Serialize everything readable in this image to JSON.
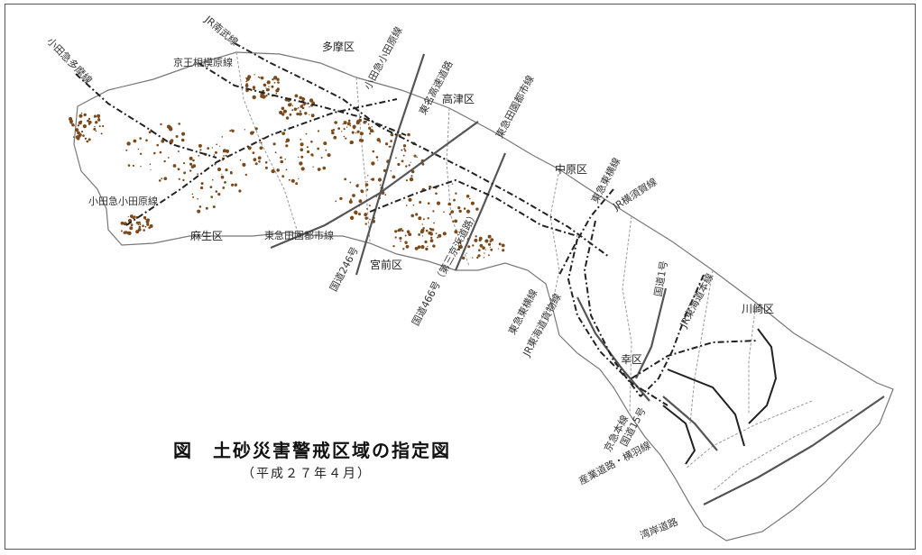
{
  "figure": {
    "title_mark": "図",
    "title": "土砂災害警戒区域の指定図",
    "subtitle": "（平成２７年４月）"
  },
  "wards": {
    "tama": "多摩区",
    "takatsu": "高津区",
    "nakahara": "中原区",
    "asao": "麻生区",
    "miyamae": "宮前区",
    "saiwai": "幸区",
    "kawasaki": "川崎区"
  },
  "routes": {
    "jr_nambu": "JR南武線",
    "keio_sagamihara": "京王相模原線",
    "odakyu_tama": "小田急多摩線",
    "odakyu_odawara_n": "小田急小田原線",
    "tomei": "東名高速道路",
    "tokyu_denentoshi_n": "東急田園都市線",
    "odakyu_odawara_w": "小田急小田原線",
    "tokyu_toyoko": "東急東横線",
    "jr_yokosuka": "JR横須賀線",
    "tokyu_denentoshi_s": "東急田園都市線",
    "route246": "国道246号",
    "route466": "国道466号（第三京浜道路）",
    "keikyu_toyoko": "東急東横線",
    "jr_tokaido_kamotsu": "JR東海道貨物線",
    "route1": "国道1号",
    "jr_tokaido": "JR東海道本線",
    "keikyu_main": "京急本線",
    "route15": "国道15号",
    "sangyo_road": "産業道路・横羽線",
    "wangan": "湾岸道路"
  },
  "colors": {
    "hazard_zone": "#7a4a1c",
    "boundary": "#777777",
    "road": "#555555",
    "rail": "#222222"
  }
}
